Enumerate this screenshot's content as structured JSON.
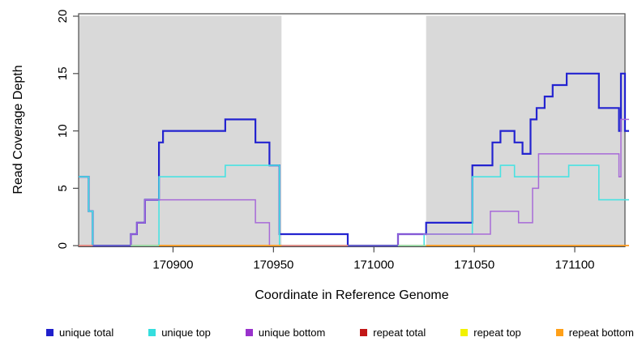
{
  "chart_data": {
    "type": "line",
    "subtype": "step-coverage-plot",
    "title": "",
    "xlabel": "Coordinate in Reference Genome",
    "ylabel": "Read Coverage Depth",
    "x_ticks": [
      170900,
      170950,
      171000,
      171050,
      171100
    ],
    "y_ticks": [
      0,
      5,
      10,
      15,
      20
    ],
    "xlim": [
      170853,
      171125
    ],
    "x_end": 171127,
    "ylim": [
      0,
      20
    ],
    "grid": false,
    "legend_position": "bottom",
    "shade_color": "#d9d9d9",
    "shaded_regions": [
      [
        170853,
        170954
      ],
      [
        171026,
        171125
      ]
    ],
    "series": [
      {
        "name": "unique total",
        "color": "#2323d0",
        "width": 2.2,
        "steps": [
          [
            170853,
            6
          ],
          [
            170858,
            3
          ],
          [
            170860,
            0
          ],
          [
            170879,
            1
          ],
          [
            170882,
            2
          ],
          [
            170886,
            4
          ],
          [
            170893,
            9
          ],
          [
            170895,
            10
          ],
          [
            170926,
            11
          ],
          [
            170941,
            9
          ],
          [
            170948,
            7
          ],
          [
            170953,
            1
          ],
          [
            170987,
            0
          ],
          [
            171012,
            1
          ],
          [
            171026,
            2
          ],
          [
            171049,
            7
          ],
          [
            171059,
            9
          ],
          [
            171063,
            10
          ],
          [
            171070,
            9
          ],
          [
            171074,
            8
          ],
          [
            171078,
            11
          ],
          [
            171081,
            12
          ],
          [
            171085,
            13
          ],
          [
            171089,
            14
          ],
          [
            171096,
            15
          ],
          [
            171112,
            12
          ],
          [
            171122,
            10
          ],
          [
            171123,
            15
          ],
          [
            171125,
            10
          ]
        ]
      },
      {
        "name": "unique top",
        "color": "#4ae2e2",
        "width": 1.6,
        "steps": [
          [
            170853,
            6
          ],
          [
            170858,
            3
          ],
          [
            170860,
            0
          ],
          [
            170893,
            6
          ],
          [
            170926,
            7
          ],
          [
            170953,
            0
          ],
          [
            171025,
            1
          ],
          [
            171049,
            6
          ],
          [
            171063,
            7
          ],
          [
            171070,
            6
          ],
          [
            171097,
            7
          ],
          [
            171112,
            4
          ]
        ]
      },
      {
        "name": "unique bottom",
        "color": "#a76ad8",
        "width": 1.5,
        "steps": [
          [
            170853,
            0
          ],
          [
            170879,
            1
          ],
          [
            170882,
            2
          ],
          [
            170886,
            4
          ],
          [
            170941,
            2
          ],
          [
            170948,
            0
          ],
          [
            171012,
            1
          ],
          [
            171058,
            3
          ],
          [
            171072,
            2
          ],
          [
            171079,
            5
          ],
          [
            171082,
            8
          ],
          [
            171122,
            6
          ],
          [
            171123,
            11
          ]
        ]
      },
      {
        "name": "repeat total",
        "color": "#cc1a1a",
        "width": 1.4,
        "steps": [
          [
            170853,
            0
          ]
        ]
      },
      {
        "name": "repeat top",
        "color": "#f0f000",
        "width": 1.4,
        "steps": [
          [
            170853,
            0
          ]
        ]
      },
      {
        "name": "repeat bottom",
        "color": "#ff9818",
        "width": 1.6,
        "steps": [
          [
            170853,
            0
          ]
        ]
      }
    ],
    "zero_line_visible_segments": [
      {
        "from": 170853,
        "to": 170860,
        "color": "#e07f7f"
      },
      {
        "from": 170860,
        "to": 170879,
        "color": "#6158d2"
      },
      {
        "from": 170879,
        "to": 170893,
        "color": "#93d9a5"
      },
      {
        "from": 170893,
        "to": 170954,
        "color": "#ff9818"
      },
      {
        "from": 170954,
        "to": 170987,
        "color": "#e07f7f"
      },
      {
        "from": 170987,
        "to": 171012,
        "color": "#6158d2"
      },
      {
        "from": 171012,
        "to": 171026,
        "color": "#93d9a5"
      },
      {
        "from": 171026,
        "to": 171127,
        "color": "#ff9818"
      }
    ]
  },
  "legend": {
    "items": [
      {
        "label": "unique total",
        "color": "#2020cc"
      },
      {
        "label": "unique top",
        "color": "#35dede"
      },
      {
        "label": "unique bottom",
        "color": "#9932cc"
      },
      {
        "label": "repeat total",
        "color": "#c21717"
      },
      {
        "label": "repeat top",
        "color": "#f2f200"
      },
      {
        "label": "repeat bottom",
        "color": "#ffa018"
      }
    ]
  }
}
